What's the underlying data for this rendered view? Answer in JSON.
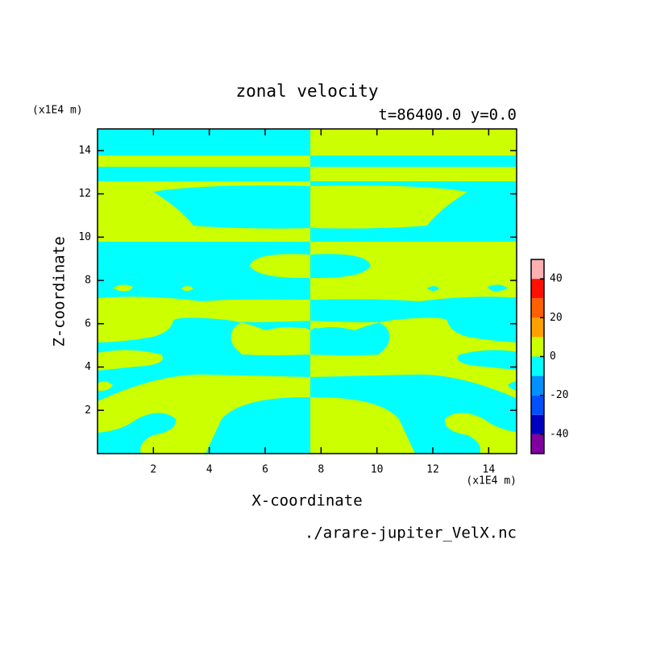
{
  "chart_data": {
    "type": "contour",
    "title": "zonal velocity",
    "subtitle": "t=86400.0 y=0.0",
    "x_label": "X-coordinate",
    "y_label": "Z-coordinate",
    "x_unit": "(x1E4 m)",
    "y_unit": "(x1E4 m)",
    "source": "./arare-jupiter_VelX.nc",
    "xlim": [
      0,
      15
    ],
    "xticks": [
      2,
      4,
      6,
      8,
      10,
      12,
      14
    ],
    "ylim": [
      0,
      15
    ],
    "yticks": [
      2,
      4,
      6,
      8,
      10,
      12,
      14
    ],
    "levels": [
      -50,
      -40,
      -30,
      -20,
      -10,
      0,
      10,
      20,
      30,
      40,
      50
    ],
    "colors": [
      "#8000a0",
      "#0000c0",
      "#0050ff",
      "#0090ff",
      "#00ffff",
      "#ccff00",
      "#ffa000",
      "#ff6000",
      "#ff1000",
      "#ffb0b0"
    ],
    "colorbar_ticks": [
      40,
      20,
      0,
      -20,
      -40
    ]
  }
}
